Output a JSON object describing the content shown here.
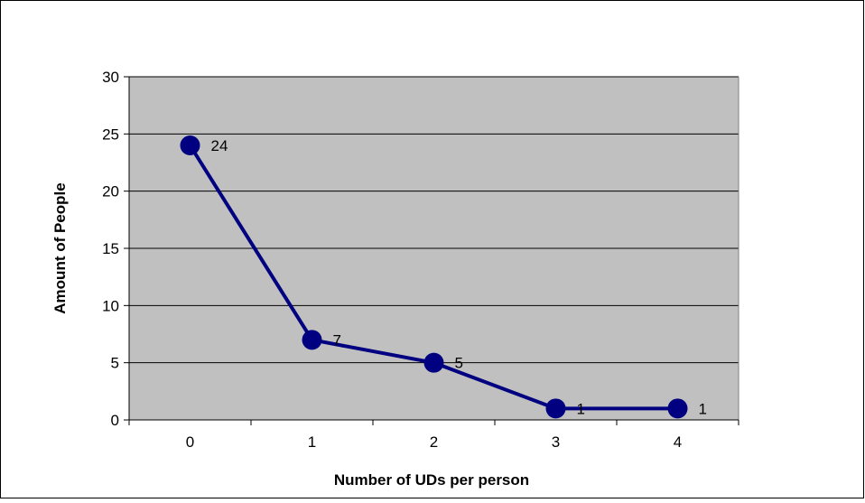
{
  "chart_data": {
    "type": "line",
    "title": "",
    "xlabel": "Number of UDs per person",
    "ylabel": "Amount of People",
    "categories": [
      "0",
      "1",
      "2",
      "3",
      "4"
    ],
    "series": [
      {
        "values": [
          24,
          7,
          5,
          1,
          1
        ],
        "data_labels": [
          "24",
          "7",
          "5",
          "1",
          "1"
        ]
      }
    ],
    "ylim": [
      0,
      30
    ],
    "yticks": [
      0,
      5,
      10,
      15,
      20,
      25,
      30
    ],
    "ytick_labels": [
      "0",
      "5",
      "10",
      "15",
      "20",
      "25",
      "30"
    ],
    "grid": "horizontal",
    "legend": "none",
    "colors": {
      "plot_background": "#c0c0c0",
      "series_line": "#000080",
      "marker": "#000080",
      "gridline": "#000000",
      "border": "#000000"
    }
  }
}
